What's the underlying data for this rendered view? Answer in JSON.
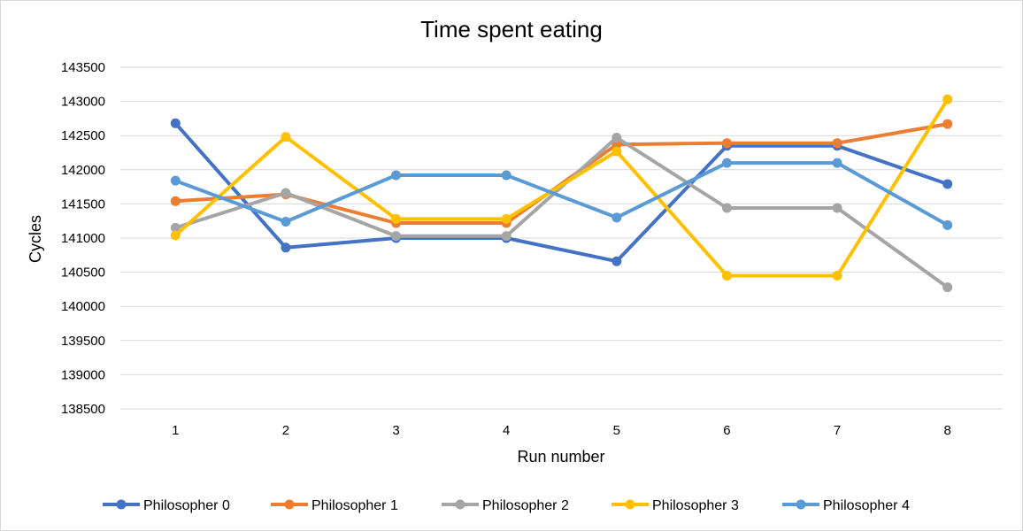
{
  "chart_data": {
    "type": "line",
    "title": "Time spent eating",
    "xlabel": "Run number",
    "ylabel": "Cycles",
    "x": [
      1,
      2,
      3,
      4,
      5,
      6,
      7,
      8
    ],
    "ylim": [
      138500,
      143500
    ],
    "ytick_step": 500,
    "grid": "horizontal",
    "legend_position": "bottom",
    "series": [
      {
        "name": "Philosopher 0",
        "color": "#4472c4",
        "values": [
          142680,
          140860,
          141000,
          141000,
          140660,
          142350,
          142350,
          141790
        ]
      },
      {
        "name": "Philosopher 1",
        "color": "#ed7d31",
        "values": [
          141540,
          141640,
          141220,
          141220,
          142370,
          142390,
          142390,
          142670
        ]
      },
      {
        "name": "Philosopher 2",
        "color": "#a5a5a5",
        "values": [
          141150,
          141660,
          141030,
          141030,
          142470,
          141440,
          141440,
          140280
        ]
      },
      {
        "name": "Philosopher 3",
        "color": "#ffc000",
        "values": [
          141040,
          142480,
          141280,
          141280,
          142270,
          140450,
          140450,
          143030
        ]
      },
      {
        "name": "Philosopher 4",
        "color": "#5b9bd5",
        "values": [
          141840,
          141240,
          141920,
          141920,
          141300,
          142100,
          142100,
          141190
        ]
      }
    ]
  }
}
